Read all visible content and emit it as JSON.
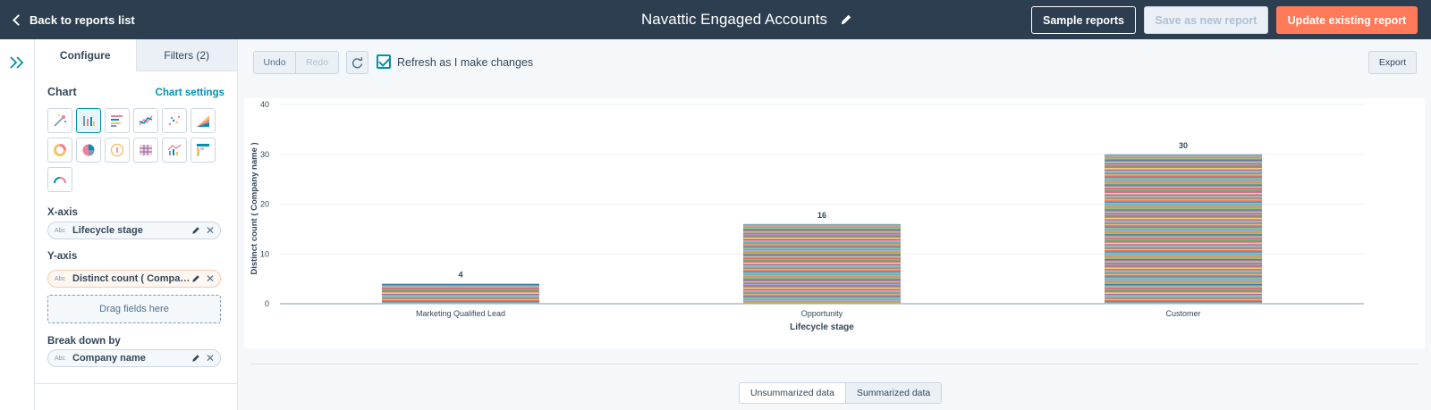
{
  "header": {
    "back_label": "Back to reports list",
    "report_title": "Navattic Engaged Accounts",
    "sample_reports_label": "Sample reports",
    "save_new_label": "Save as new report",
    "update_label": "Update existing report"
  },
  "panel": {
    "tabs": [
      {
        "label": "Configure"
      },
      {
        "label": "Filters (2)"
      }
    ],
    "chart_label": "Chart",
    "chart_settings_label": "Chart settings",
    "chart_types": [
      {
        "name": "magic-wand-icon"
      },
      {
        "name": "vertical-bar-icon"
      },
      {
        "name": "horizontal-bar-icon"
      },
      {
        "name": "line-chart-icon"
      },
      {
        "name": "scatter-chart-icon"
      },
      {
        "name": "area-chart-icon"
      },
      {
        "name": "donut-chart-icon"
      },
      {
        "name": "pie-chart-icon"
      },
      {
        "name": "summary-number-icon"
      },
      {
        "name": "table-icon"
      },
      {
        "name": "combo-chart-icon"
      },
      {
        "name": "pivot-table-icon"
      },
      {
        "name": "gauge-icon"
      }
    ],
    "xaxis_label": "X-axis",
    "xaxis_field": "Lifecycle stage",
    "yaxis_label": "Y-axis",
    "yaxis_field": "Distinct count ( Company n...",
    "drag_fields_label": "Drag fields here",
    "breakdown_label": "Break down by",
    "breakdown_field": "Company name",
    "field_type_label": "Abc"
  },
  "toolbar": {
    "undo_label": "Undo",
    "redo_label": "Redo",
    "refresh_label": "Refresh as I make changes",
    "refresh_checked": true,
    "export_label": "Export"
  },
  "chart_data": {
    "type": "bar",
    "stacked": true,
    "categories": [
      "Marketing Qualified Lead",
      "Opportunity",
      "Customer"
    ],
    "values": [
      4,
      16,
      30
    ],
    "data_labels": [
      "4",
      "16",
      "30"
    ],
    "xlabel": "Lifecycle stage",
    "ylabel": "Distinct count ( Company name )",
    "ylim": [
      0,
      40
    ],
    "yticks": [
      "0",
      "10",
      "20",
      "30",
      "40"
    ],
    "grid": true,
    "segment_palette": [
      "#f2b880",
      "#e8735d",
      "#4a90d9",
      "#86c8a0",
      "#7b5ea7",
      "#ef9fa8",
      "#5cc5d0",
      "#b38a6a",
      "#a0a4e8",
      "#6aa84f",
      "#d96c8e",
      "#f6d27a",
      "#3a7ca5",
      "#c27ba0",
      "#9bd3ae",
      "#e06666",
      "#76a5af",
      "#b4a7d6",
      "#e69138",
      "#93c47d"
    ]
  },
  "bottom_tabs": {
    "unsummarized_label": "Unsummarized data",
    "summarized_label": "Summarized data"
  }
}
